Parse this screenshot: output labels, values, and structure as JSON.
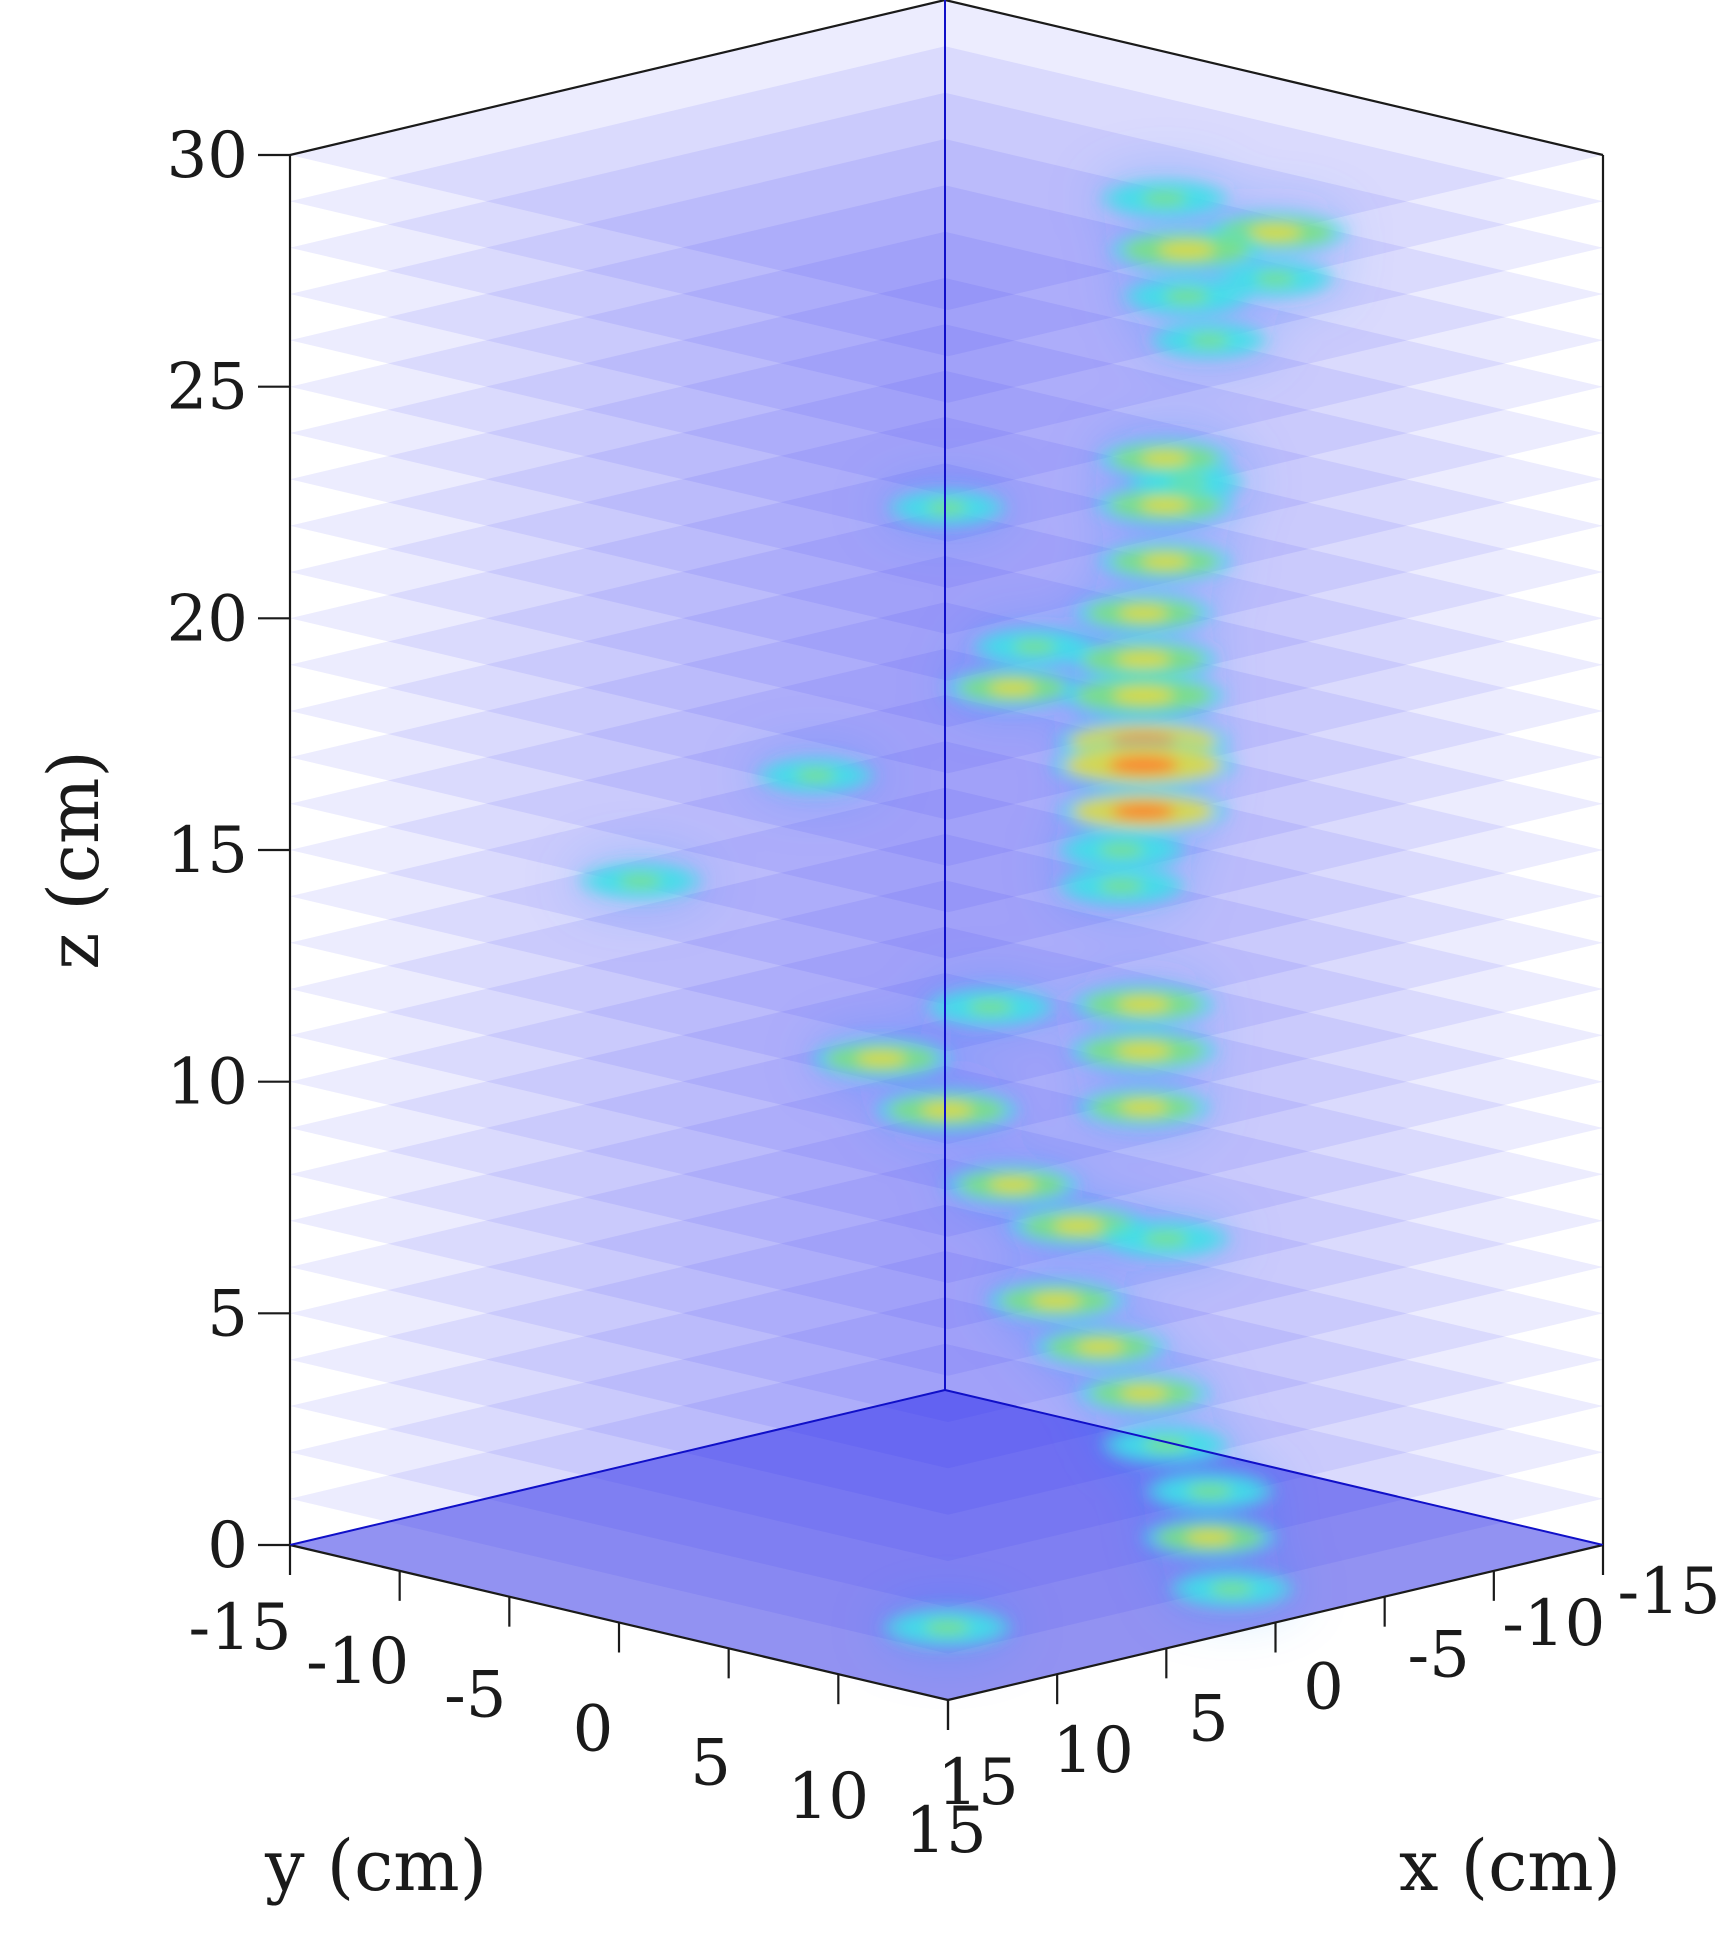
{
  "chart_data": {
    "type": "heatmap",
    "subtype": "3d-stacked-slices",
    "title": "",
    "xlabel": "x (cm)",
    "ylabel": "y (cm)",
    "zlabel": "z (cm)",
    "xlim": [
      -15,
      15
    ],
    "ylim": [
      -15,
      15
    ],
    "zlim": [
      0,
      30
    ],
    "x_ticks": [
      15,
      10,
      5,
      0,
      -5,
      -10,
      -15
    ],
    "y_ticks": [
      -15,
      -10,
      -5,
      0,
      5,
      10,
      15
    ],
    "z_ticks": [
      0,
      5,
      10,
      15,
      20,
      25,
      30
    ],
    "slice_spacing": 1,
    "colormap": [
      "#1414f5",
      "#2f78ff",
      "#3fe0e8",
      "#7fe07a",
      "#e8d83a",
      "#ff7a30"
    ],
    "base_color": "#2222ee",
    "background": "#ffffff",
    "grid": false,
    "hotspots": [
      {
        "x": 0,
        "y": 15,
        "z": 30,
        "intensity": 0.6
      },
      {
        "x": 0,
        "y": 15,
        "z": 29,
        "intensity": 0.35
      },
      {
        "x": -12,
        "y": -2,
        "z": 27.5,
        "intensity": 0.45
      },
      {
        "x": -12,
        "y": -1,
        "z": 26.5,
        "intensity": 0.7
      },
      {
        "x": -12,
        "y": -1,
        "z": 25.5,
        "intensity": 0.45
      },
      {
        "x": -6,
        "y": 6,
        "z": 26,
        "intensity": 0.35
      },
      {
        "x": 5,
        "y": 5,
        "z": 23.5,
        "intensity": 0.35
      },
      {
        "x": -3,
        "y": 8,
        "z": 23.5,
        "intensity": 0.3
      },
      {
        "x": -7,
        "y": 3,
        "z": 23,
        "intensity": 0.5
      },
      {
        "x": -7,
        "y": 3,
        "z": 22,
        "intensity": 0.55
      },
      {
        "x": -6,
        "y": 4,
        "z": 21,
        "intensity": 0.5
      },
      {
        "x": 3,
        "y": 7,
        "z": 20.5,
        "intensity": 0.4
      },
      {
        "x": 3,
        "y": 6,
        "z": 19.5,
        "intensity": 0.5
      },
      {
        "x": -5,
        "y": 4,
        "z": 20,
        "intensity": 0.55
      },
      {
        "x": -5,
        "y": 4,
        "z": 19,
        "intensity": 0.65
      },
      {
        "x": -6,
        "y": 3,
        "z": 18,
        "intensity": 0.8
      },
      {
        "x": -6,
        "y": 3,
        "z": 17,
        "intensity": 0.9
      },
      {
        "x": -6,
        "y": 3,
        "z": 16.5,
        "intensity": 1.0
      },
      {
        "x": -6,
        "y": 3,
        "z": 15.5,
        "intensity": 0.85
      },
      {
        "x": 7,
        "y": 1,
        "z": 17.5,
        "intensity": 0.35
      },
      {
        "x": -4,
        "y": 4,
        "z": 15,
        "intensity": 0.45
      },
      {
        "x": 10,
        "y": -4,
        "z": 15,
        "intensity": 0.4
      },
      {
        "x": -5,
        "y": 3,
        "z": 14,
        "intensity": 0.45
      },
      {
        "x": 3,
        "y": 5,
        "z": 12.5,
        "intensity": 0.45
      },
      {
        "x": 6,
        "y": 3,
        "z": 11.5,
        "intensity": 0.55
      },
      {
        "x": -3,
        "y": 6,
        "z": 12,
        "intensity": 0.6
      },
      {
        "x": -3,
        "y": 6,
        "z": 11,
        "intensity": 0.65
      },
      {
        "x": 5,
        "y": 5,
        "z": 10.5,
        "intensity": 0.6
      },
      {
        "x": -2,
        "y": 7,
        "z": 10,
        "intensity": 0.5
      },
      {
        "x": 4,
        "y": 7,
        "z": 9,
        "intensity": 0.5
      },
      {
        "x": 2,
        "y": 8,
        "z": 8,
        "intensity": 0.55
      },
      {
        "x": -1,
        "y": 9,
        "z": 7.5,
        "intensity": 0.45
      },
      {
        "x": 3,
        "y": 8,
        "z": 6.5,
        "intensity": 0.55
      },
      {
        "x": 2,
        "y": 9,
        "z": 5.5,
        "intensity": 0.5
      },
      {
        "x": 1,
        "y": 10,
        "z": 4.5,
        "intensity": 0.5
      },
      {
        "x": 1,
        "y": 11,
        "z": 3.5,
        "intensity": 0.45
      },
      {
        "x": 0,
        "y": 12,
        "z": 2.5,
        "intensity": 0.45
      },
      {
        "x": 0,
        "y": 12,
        "z": 1.5,
        "intensity": 0.5
      },
      {
        "x": 0,
        "y": 13,
        "z": 0.5,
        "intensity": 0.4
      },
      {
        "x": 8,
        "y": 8,
        "z": 0,
        "intensity": 0.45
      }
    ]
  }
}
